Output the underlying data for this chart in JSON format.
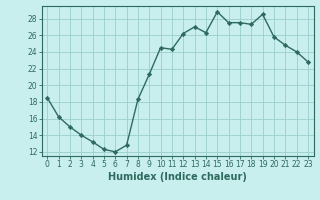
{
  "x": [
    0,
    1,
    2,
    3,
    4,
    5,
    6,
    7,
    8,
    9,
    10,
    11,
    12,
    13,
    14,
    15,
    16,
    17,
    18,
    19,
    20,
    21,
    22,
    23
  ],
  "y": [
    18.5,
    16.2,
    15.0,
    14.0,
    13.2,
    12.3,
    12.0,
    12.8,
    18.3,
    21.3,
    24.5,
    24.3,
    26.2,
    27.0,
    26.3,
    28.8,
    27.5,
    27.5,
    27.3,
    28.5,
    25.8,
    24.8,
    24.0,
    22.8
  ],
  "line_color": "#2e6b5e",
  "marker": "D",
  "markersize": 2.2,
  "linewidth": 1.0,
  "background_color": "#c8eeee",
  "grid_color": "#9acece",
  "xlabel": "Humidex (Indice chaleur)",
  "xlabel_fontsize": 7,
  "xlim": [
    -0.5,
    23.5
  ],
  "ylim": [
    11.5,
    29.5
  ],
  "yticks": [
    12,
    14,
    16,
    18,
    20,
    22,
    24,
    26,
    28
  ],
  "xticks": [
    0,
    1,
    2,
    3,
    4,
    5,
    6,
    7,
    8,
    9,
    10,
    11,
    12,
    13,
    14,
    15,
    16,
    17,
    18,
    19,
    20,
    21,
    22,
    23
  ],
  "tick_fontsize": 5.5,
  "tick_color": "#2e6b5e",
  "spine_color": "#2e6b5e"
}
